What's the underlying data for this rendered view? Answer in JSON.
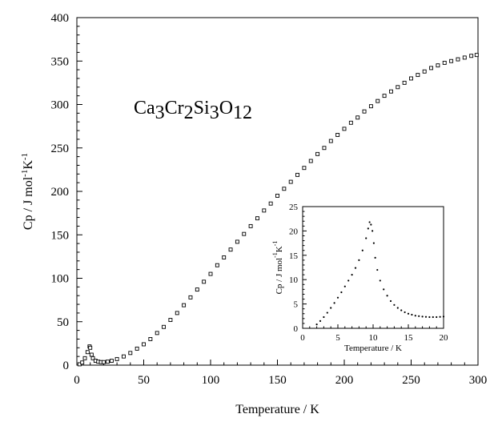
{
  "chart_data": [
    {
      "id": "main",
      "type": "scatter",
      "title": "",
      "annotation": {
        "formula_parts": [
          {
            "t": "Ca",
            "sub": false
          },
          {
            "t": "3",
            "sub": true
          },
          {
            "t": "Cr",
            "sub": false
          },
          {
            "t": "2",
            "sub": true
          },
          {
            "t": "Si",
            "sub": false
          },
          {
            "t": "3",
            "sub": true
          },
          {
            "t": "O",
            "sub": false
          },
          {
            "t": "12",
            "sub": true
          }
        ]
      },
      "xlabel": "Temperature / K",
      "ylabel_parts": [
        {
          "t": "Cp / J mol",
          "sup": false
        },
        {
          "t": "-1",
          "sup": true
        },
        {
          "t": "K",
          "sup": false
        },
        {
          "t": "-1",
          "sup": true
        }
      ],
      "xlim": [
        0,
        300
      ],
      "ylim": [
        0,
        400
      ],
      "xticks": [
        0,
        50,
        100,
        150,
        200,
        250,
        300
      ],
      "yticks": [
        0,
        50,
        100,
        150,
        200,
        250,
        300,
        350,
        400
      ],
      "grid": false,
      "series": [
        {
          "marker": "open-square",
          "points": [
            [
              2,
              1
            ],
            [
              4,
              3
            ],
            [
              6,
              8
            ],
            [
              8,
              15
            ],
            [
              9.5,
              21.5
            ],
            [
              10,
              20
            ],
            [
              11,
              12
            ],
            [
              12,
              8
            ],
            [
              14,
              5
            ],
            [
              16,
              4
            ],
            [
              18,
              3.5
            ],
            [
              20,
              3.5
            ],
            [
              23,
              4
            ],
            [
              26,
              5
            ],
            [
              30,
              7
            ],
            [
              35,
              10
            ],
            [
              40,
              14
            ],
            [
              45,
              19
            ],
            [
              50,
              24
            ],
            [
              55,
              30
            ],
            [
              60,
              37
            ],
            [
              65,
              44
            ],
            [
              70,
              52
            ],
            [
              75,
              60
            ],
            [
              80,
              69
            ],
            [
              85,
              78
            ],
            [
              90,
              87
            ],
            [
              95,
              96
            ],
            [
              100,
              105
            ],
            [
              105,
              115
            ],
            [
              110,
              124
            ],
            [
              115,
              133
            ],
            [
              120,
              142
            ],
            [
              125,
              151
            ],
            [
              130,
              160
            ],
            [
              135,
              169
            ],
            [
              140,
              178
            ],
            [
              145,
              186
            ],
            [
              150,
              195
            ],
            [
              155,
              203
            ],
            [
              160,
              211
            ],
            [
              165,
              219
            ],
            [
              170,
              227
            ],
            [
              175,
              235
            ],
            [
              180,
              243
            ],
            [
              185,
              250
            ],
            [
              190,
              258
            ],
            [
              195,
              265
            ],
            [
              200,
              272
            ],
            [
              205,
              279
            ],
            [
              210,
              285
            ],
            [
              215,
              292
            ],
            [
              220,
              298
            ],
            [
              225,
              304
            ],
            [
              230,
              310
            ],
            [
              235,
              315
            ],
            [
              240,
              320
            ],
            [
              245,
              325
            ],
            [
              250,
              330
            ],
            [
              255,
              334
            ],
            [
              260,
              338
            ],
            [
              265,
              342
            ],
            [
              270,
              345
            ],
            [
              275,
              348
            ],
            [
              280,
              350
            ],
            [
              285,
              352
            ],
            [
              290,
              354
            ],
            [
              295,
              356
            ],
            [
              299,
              357
            ]
          ]
        }
      ]
    },
    {
      "id": "inset",
      "type": "scatter",
      "title": "",
      "xlabel": "Temperature /  K",
      "ylabel_parts": [
        {
          "t": "Cp / J mol",
          "sup": false
        },
        {
          "t": "-1",
          "sup": true
        },
        {
          "t": "K",
          "sup": false
        },
        {
          "t": "-1",
          "sup": true
        }
      ],
      "xlim": [
        0,
        20
      ],
      "ylim": [
        0,
        25
      ],
      "xticks": [
        0,
        5,
        10,
        15,
        20
      ],
      "yticks": [
        0,
        5,
        10,
        15,
        20,
        25
      ],
      "grid": false,
      "series": [
        {
          "marker": "dot",
          "points": [
            [
              2.0,
              0.8
            ],
            [
              2.5,
              1.5
            ],
            [
              3.0,
              2.3
            ],
            [
              3.5,
              3.2
            ],
            [
              4.0,
              4.2
            ],
            [
              4.5,
              5.2
            ],
            [
              5.0,
              6.3
            ],
            [
              5.5,
              7.4
            ],
            [
              6.0,
              8.6
            ],
            [
              6.5,
              9.8
            ],
            [
              7.0,
              11.0
            ],
            [
              7.5,
              12.4
            ],
            [
              8.0,
              14.0
            ],
            [
              8.5,
              16.0
            ],
            [
              9.0,
              18.5
            ],
            [
              9.3,
              20.5
            ],
            [
              9.5,
              21.8
            ],
            [
              9.7,
              21.3
            ],
            [
              9.9,
              20.0
            ],
            [
              10.1,
              17.5
            ],
            [
              10.3,
              14.5
            ],
            [
              10.6,
              12.0
            ],
            [
              11.0,
              9.8
            ],
            [
              11.5,
              8.0
            ],
            [
              12.0,
              6.7
            ],
            [
              12.5,
              5.6
            ],
            [
              13.0,
              4.8
            ],
            [
              13.5,
              4.2
            ],
            [
              14.0,
              3.7
            ],
            [
              14.5,
              3.3
            ],
            [
              15.0,
              3.0
            ],
            [
              15.5,
              2.8
            ],
            [
              16.0,
              2.6
            ],
            [
              16.5,
              2.5
            ],
            [
              17.0,
              2.4
            ],
            [
              17.5,
              2.35
            ],
            [
              18.0,
              2.3
            ],
            [
              18.5,
              2.3
            ],
            [
              19.0,
              2.3
            ],
            [
              19.5,
              2.35
            ],
            [
              20.0,
              2.4
            ]
          ]
        }
      ]
    }
  ]
}
